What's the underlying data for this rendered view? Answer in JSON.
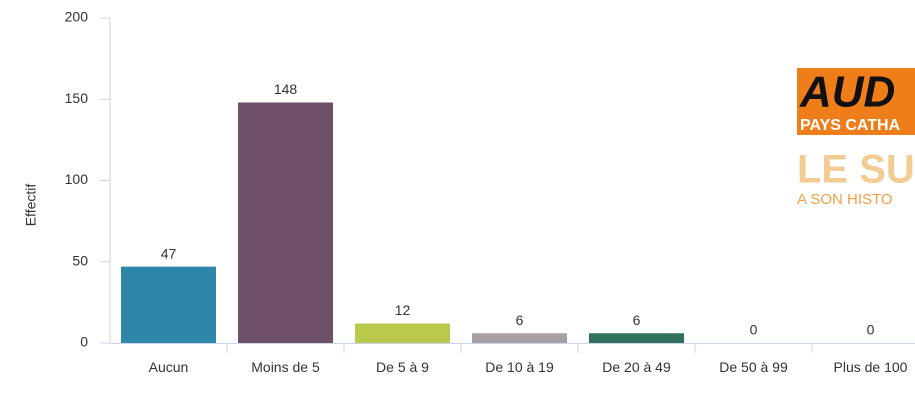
{
  "chart_data": {
    "type": "bar",
    "y_label": "Effectif",
    "categories": [
      "Aucun",
      "Moins de 5",
      "De 5 à 9",
      "De 10 à 19",
      "De 20 à 49",
      "De 50 à 99",
      "Plus de 100"
    ],
    "values": [
      47,
      148,
      12,
      6,
      6,
      0,
      0
    ],
    "colors": [
      "#2e87aa",
      "#6e5068",
      "#b8c94c",
      "#a99fa6",
      "#30705f",
      "#999999",
      "#999999"
    ],
    "ylim": [
      0,
      200
    ],
    "yticks": [
      0,
      50,
      100,
      150,
      200
    ],
    "grid": false
  },
  "logo": {
    "line1": "AUD",
    "line2": "PAYS CATHA",
    "line3": "LE SU",
    "line4": "A SON HISTO"
  }
}
